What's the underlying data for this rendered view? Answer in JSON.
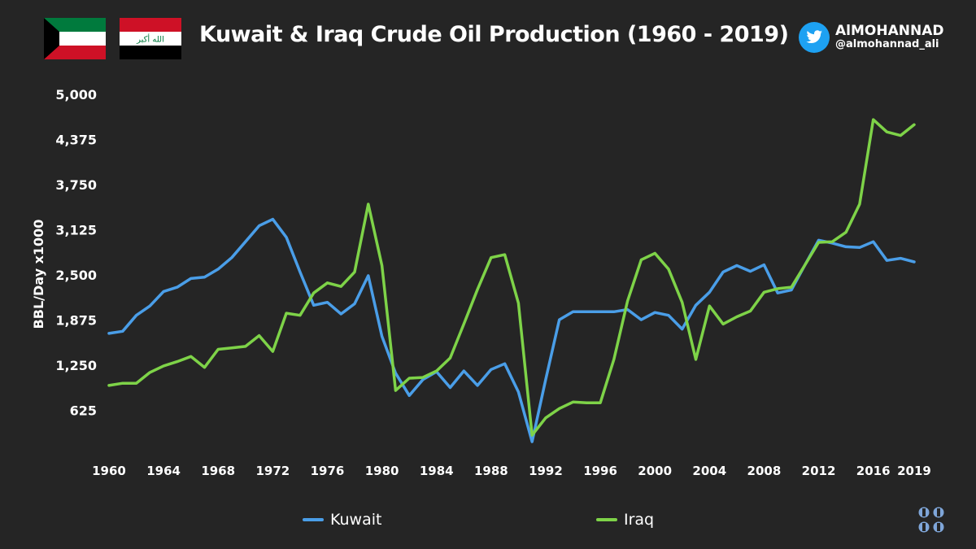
{
  "title": "Kuwait & Iraq Crude Oil Production (1960 - 2019)",
  "handle": {
    "name": "AlMOHANNAD",
    "at": "@almohannad_ali",
    "icon": "twitter-bird-icon"
  },
  "flags": [
    {
      "country": "Kuwait",
      "colors": [
        "#007a3d",
        "#ffffff",
        "#ce1126",
        "#000000"
      ]
    },
    {
      "country": "Iraq",
      "colors": [
        "#ce1126",
        "#ffffff",
        "#000000",
        "#007a3d"
      ],
      "inscription": "الله أكبر"
    }
  ],
  "colors": {
    "background": "#252525",
    "kuwait": "#4a9ee8",
    "iraq": "#7ed348"
  },
  "chart_data": {
    "type": "line",
    "title": "Kuwait & Iraq Crude Oil Production (1960 - 2019)",
    "ylabel": "BBL/Day x1000",
    "xlabel": "",
    "ylim": [
      0,
      5000
    ],
    "xlim": [
      1960,
      2019
    ],
    "yticks": [
      "625",
      "1,250",
      "1,875",
      "2,500",
      "3,125",
      "3,750",
      "4,375",
      "5,000"
    ],
    "xticks": [
      "1960",
      "1964",
      "1968",
      "1972",
      "1976",
      "1980",
      "1984",
      "1988",
      "1992",
      "1996",
      "2000",
      "2004",
      "2008",
      "2012",
      "2016",
      "2019"
    ],
    "grid": false,
    "legend_position": "bottom",
    "x": [
      1960,
      1961,
      1962,
      1963,
      1964,
      1965,
      1966,
      1967,
      1968,
      1969,
      1970,
      1971,
      1972,
      1973,
      1974,
      1975,
      1976,
      1977,
      1978,
      1979,
      1980,
      1981,
      1982,
      1983,
      1984,
      1985,
      1986,
      1987,
      1988,
      1989,
      1990,
      1991,
      1992,
      1993,
      1994,
      1995,
      1996,
      1997,
      1998,
      1999,
      2000,
      2001,
      2002,
      2003,
      2004,
      2005,
      2006,
      2007,
      2008,
      2009,
      2010,
      2011,
      2012,
      2013,
      2014,
      2015,
      2016,
      2017,
      2018,
      2019
    ],
    "series": [
      {
        "name": "Kuwait",
        "values": [
          1690,
          1720,
          1940,
          2070,
          2270,
          2330,
          2450,
          2470,
          2580,
          2740,
          2960,
          3180,
          3270,
          3020,
          2540,
          2080,
          2120,
          1960,
          2100,
          2490,
          1650,
          1140,
          830,
          1050,
          1160,
          940,
          1170,
          970,
          1190,
          1270,
          880,
          190,
          1050,
          1880,
          1990,
          1990,
          1990,
          1990,
          2020,
          1880,
          1980,
          1940,
          1750,
          2080,
          2260,
          2540,
          2630,
          2550,
          2640,
          2250,
          2290,
          2640,
          2980,
          2940,
          2890,
          2880,
          2960,
          2700,
          2730,
          2680
        ]
      },
      {
        "name": "Iraq",
        "values": [
          970,
          1000,
          1000,
          1150,
          1240,
          1300,
          1370,
          1220,
          1470,
          1490,
          1510,
          1660,
          1440,
          1970,
          1940,
          2250,
          2390,
          2340,
          2540,
          3480,
          2630,
          900,
          1070,
          1080,
          1170,
          1350,
          1820,
          2300,
          2740,
          2780,
          2110,
          280,
          520,
          650,
          740,
          730,
          730,
          1330,
          2140,
          2710,
          2800,
          2580,
          2120,
          1330,
          2070,
          1820,
          1920,
          2000,
          2260,
          2310,
          2330,
          2640,
          2950,
          2960,
          3090,
          3480,
          4650,
          4480,
          4430,
          4580
        ]
      }
    ]
  },
  "legend": [
    {
      "label": "Kuwait"
    },
    {
      "label": "Iraq"
    }
  ],
  "logo": {
    "icon": "opec-logo-icon"
  }
}
